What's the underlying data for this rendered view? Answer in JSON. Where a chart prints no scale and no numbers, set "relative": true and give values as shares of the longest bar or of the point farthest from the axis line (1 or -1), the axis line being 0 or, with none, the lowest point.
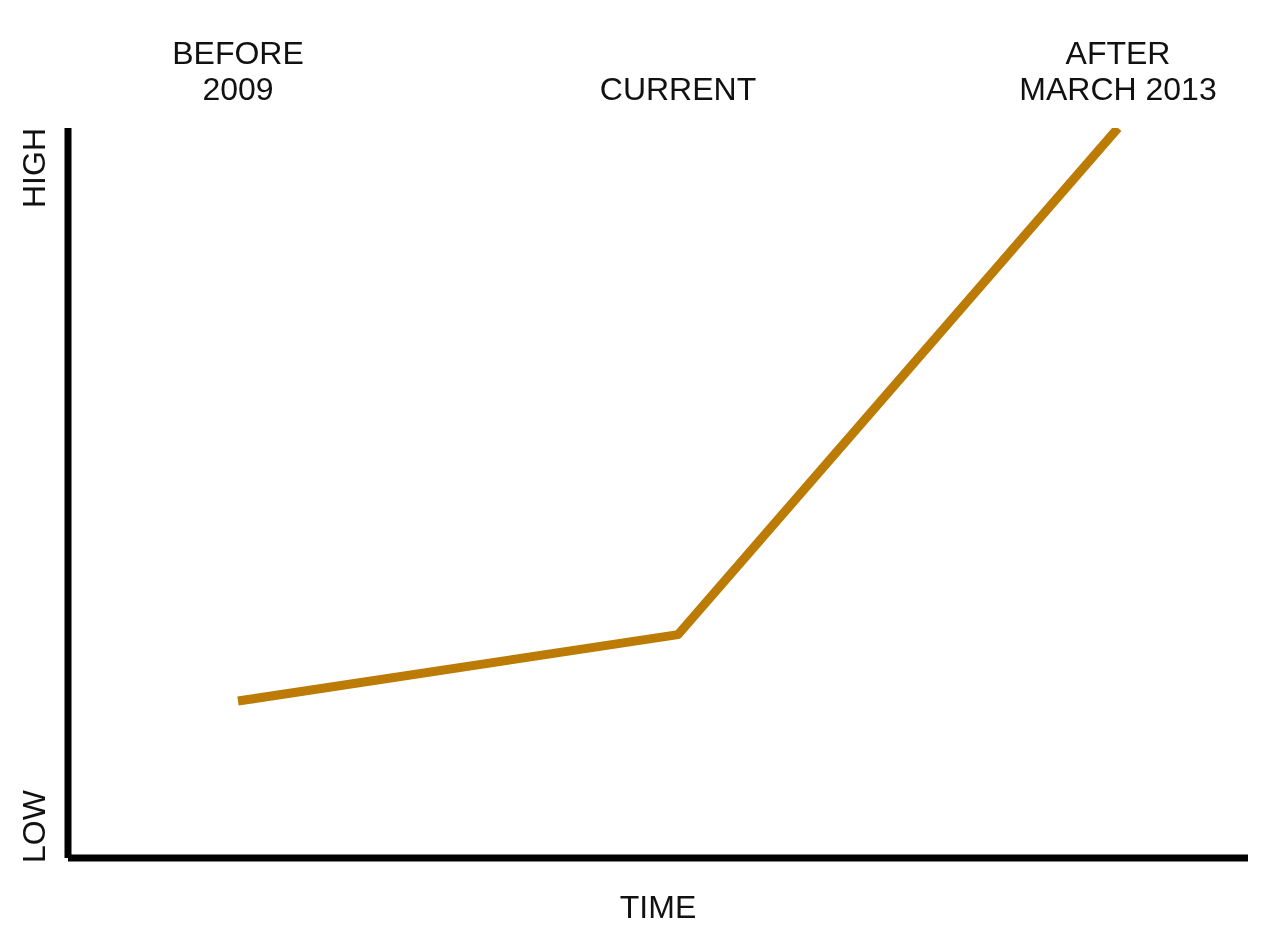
{
  "chart_data": {
    "type": "line",
    "relative": true,
    "categories": [
      "BEFORE\n2009",
      "CURRENT",
      "AFTER\nMARCH 2013"
    ],
    "series": [
      {
        "color": "#bb7b05",
        "values": [
          0.215,
          0.306,
          1
        ]
      }
    ],
    "xlabel": "TIME",
    "annotations": [
      "HIGH",
      "LOW"
    ],
    "grid": false,
    "legend": false,
    "marker": "none",
    "line_style": "solid"
  }
}
